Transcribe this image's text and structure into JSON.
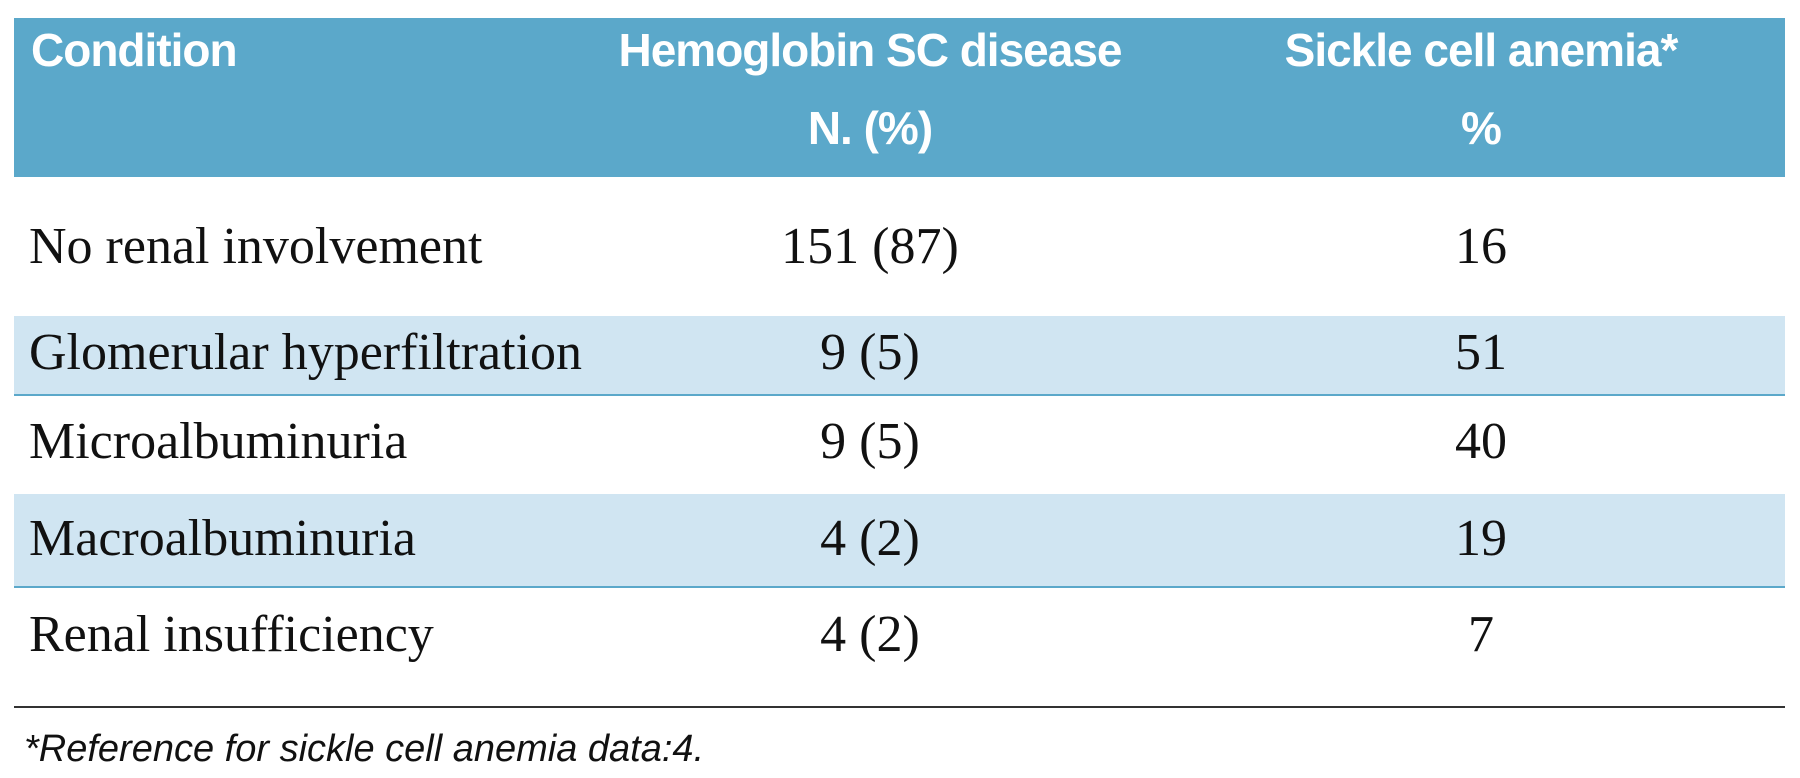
{
  "table": {
    "header": [
      [
        "Condition"
      ],
      [
        "Hemoglobin SC disease",
        "N. (%)"
      ],
      [
        "Sickle cell anemia*",
        "%"
      ]
    ],
    "rows": [
      [
        "No renal involvement",
        "151 (87)",
        16
      ],
      [
        "Glomerular hyperfiltration",
        "9 (5)",
        51
      ],
      [
        "Microalbuminuria",
        "9 (5)",
        40
      ],
      [
        "Macroalbuminuria",
        "4 (2)",
        19
      ],
      [
        "Renal insufficiency",
        "4 (2)",
        7
      ]
    ],
    "footnote": "*Reference for sickle cell anemia data:4."
  }
}
